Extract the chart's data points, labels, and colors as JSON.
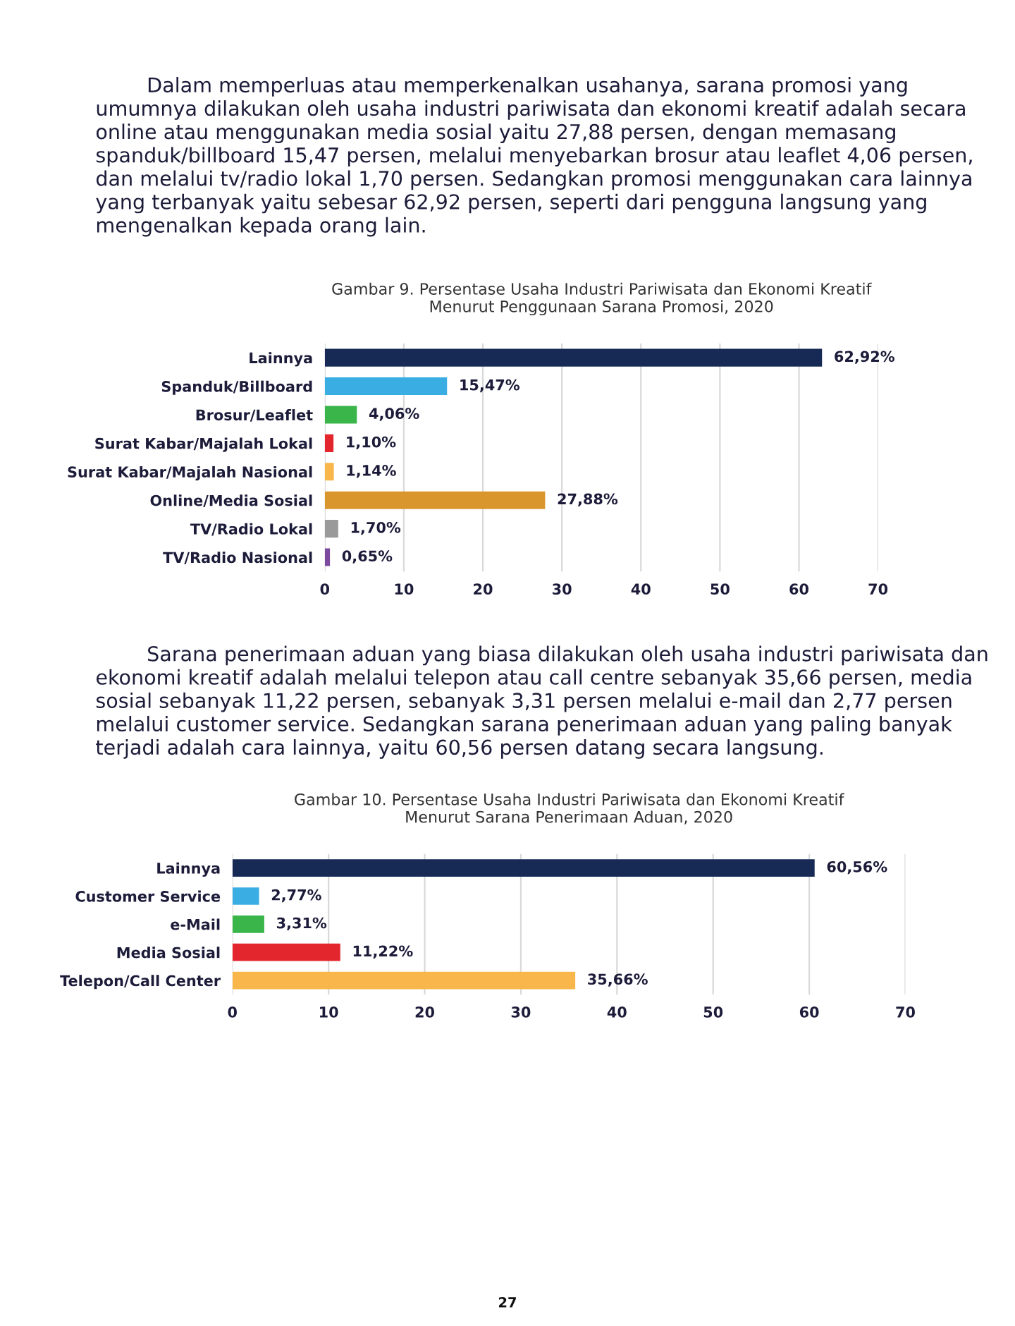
{
  "chart_data": [
    {
      "type": "bar",
      "orientation": "horizontal",
      "title": "Gambar 9. Persentase Usaha Industri Pariwisata dan Ekonomi Kreatif\nMenurut Penggunaan Sarana Promosi, 2020",
      "categories": [
        "Lainnya",
        "Spanduk/Billboard",
        "Brosur/Leaflet",
        "Surat Kabar/Majalah Lokal",
        "Surat Kabar/Majalah Nasional",
        "Online/Media Sosial",
        "TV/Radio Lokal",
        "TV/Radio Nasional"
      ],
      "values": [
        62.92,
        15.47,
        4.06,
        1.1,
        1.14,
        27.88,
        1.7,
        0.65
      ],
      "colors": [
        "#172a55",
        "#3aaee2",
        "#39b54a",
        "#e3262d",
        "#f9b64a",
        "#d8962c",
        "#9a9a9a",
        "#7c4a9e"
      ],
      "value_labels": [
        "62,92%",
        "15,47%",
        "4,06%",
        "1,10%",
        "1,14%",
        "27,88%",
        "1,70%",
        "0,65%"
      ],
      "xlim": [
        0,
        70
      ],
      "xticks": [
        0,
        10,
        20,
        30,
        40,
        50,
        60,
        70
      ],
      "grid": "x",
      "annotations": [
        "Dalam memperluas atau memperkenalkan usahanya, sarana promosi yang umumnya dilakukan oleh usaha industri pariwisata dan ekonomi kreatif adalah secara online atau menggunakan media sosial yaitu 27,88 persen, dengan memasang spanduk/billboard 15,47 persen, melalui menyebarkan brosur atau leaflet 4,06 persen, dan melalui tv/radio lokal 1,70 persen. Sedangkan promosi menggunakan cara lainnya yang terbanyak yaitu sebesar 62,92 persen, seperti dari pengguna langsung yang mengenalkan kepada orang lain."
      ]
    },
    {
      "type": "bar",
      "orientation": "horizontal",
      "title": "Gambar 10. Persentase Usaha Industri Pariwisata dan Ekonomi Kreatif\nMenurut Sarana Penerimaan Aduan, 2020",
      "categories": [
        "Lainnya",
        "Customer Service",
        "e-Mail",
        "Media Sosial",
        "Telepon/Call Center"
      ],
      "values": [
        60.56,
        2.77,
        3.31,
        11.22,
        35.66
      ],
      "colors": [
        "#172a55",
        "#3aaee2",
        "#39b54a",
        "#e3262d",
        "#f9b64a"
      ],
      "value_labels": [
        "60,56%",
        "2,77%",
        "3,31%",
        "11,22%",
        "35,66%"
      ],
      "xlim": [
        0,
        70
      ],
      "xticks": [
        0,
        10,
        20,
        30,
        40,
        50,
        60,
        70
      ],
      "grid": "x",
      "annotations": [
        "Sarana penerimaan aduan yang biasa dilakukan oleh usaha industri pariwisata dan ekonomi kreatif adalah melalui telepon atau call centre sebanyak 35,66 persen, media sosial sebanyak 11,22 persen, sebanyak 3,31 persen melalui e-mail dan 2,77 persen melalui customer service. Sedangkan sarana penerimaan aduan yang paling banyak terjadi adalah cara lainnya, yaitu 60,56 persen datang secara langsung.",
        "27"
      ]
    }
  ]
}
